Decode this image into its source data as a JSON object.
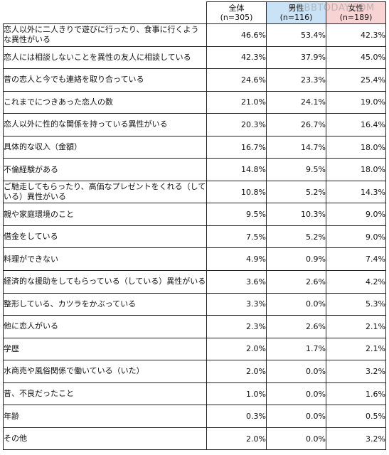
{
  "watermark": "RBBTODAY.COM",
  "header": {
    "total": {
      "label": "全体",
      "n": "(n=305)"
    },
    "male": {
      "label": "男性",
      "n": "(n=116)"
    },
    "female": {
      "label": "女性",
      "n": "(n=189)"
    }
  },
  "colors": {
    "male_header": "#c9e2f6",
    "female_header": "#f8d3d3",
    "border": "#222222"
  },
  "rows": [
    {
      "label": "恋人以外に二人きりで遊びに行ったり、食事に行くような異性がいる",
      "total": "46.6%",
      "male": "53.4%",
      "female": "42.3%"
    },
    {
      "label": "恋人には相談しないことを異性の友人に相談している",
      "total": "42.3%",
      "male": "37.9%",
      "female": "45.0%"
    },
    {
      "label": "昔の恋人と今でも連絡を取り合っている",
      "total": "24.6%",
      "male": "23.3%",
      "female": "25.4%"
    },
    {
      "label": "これまでにつきあった恋人の数",
      "total": "21.0%",
      "male": "24.1%",
      "female": "19.0%"
    },
    {
      "label": "恋人以外に性的な関係を持っている異性がいる",
      "total": "20.3%",
      "male": "26.7%",
      "female": "16.4%"
    },
    {
      "label": "具体的な収入（金額）",
      "total": "16.7%",
      "male": "14.7%",
      "female": "18.0%"
    },
    {
      "label": "不倫経験がある",
      "total": "14.8%",
      "male": "9.5%",
      "female": "18.0%"
    },
    {
      "label": "ご馳走してもらったり、高価なプレゼントをくれる（している）異性がいる",
      "total": "10.8%",
      "male": "5.2%",
      "female": "14.3%"
    },
    {
      "label": "親や家庭環境のこと",
      "total": "9.5%",
      "male": "10.3%",
      "female": "9.0%"
    },
    {
      "label": "借金をしている",
      "total": "7.5%",
      "male": "5.2%",
      "female": "9.0%"
    },
    {
      "label": "料理ができない",
      "total": "4.9%",
      "male": "0.9%",
      "female": "7.4%"
    },
    {
      "label": "経済的な援助をしてもらっている（している）異性がいる",
      "total": "3.6%",
      "male": "2.6%",
      "female": "4.2%"
    },
    {
      "label": "整形している、カツラをかぶっている",
      "total": "3.3%",
      "male": "0.0%",
      "female": "5.3%"
    },
    {
      "label": "他に恋人がいる",
      "total": "2.3%",
      "male": "2.6%",
      "female": "2.1%"
    },
    {
      "label": "学歴",
      "total": "2.0%",
      "male": "1.7%",
      "female": "2.1%"
    },
    {
      "label": "水商売や風俗関係で働いている（いた）",
      "total": "2.0%",
      "male": "0.0%",
      "female": "3.2%"
    },
    {
      "label": "昔、不良だったこと",
      "total": "1.0%",
      "male": "0.0%",
      "female": "1.6%"
    },
    {
      "label": "年齢",
      "total": "0.3%",
      "male": "0.0%",
      "female": "0.5%"
    },
    {
      "label": "その他",
      "total": "2.0%",
      "male": "0.0%",
      "female": "3.2%"
    }
  ]
}
